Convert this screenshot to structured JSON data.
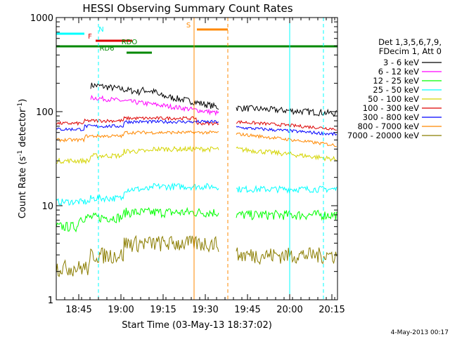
{
  "chart_data": {
    "type": "line",
    "title": "HESSI Observing Summary Count Rates",
    "xlabel": "Start Time (03-May-13 18:37:02)",
    "ylabel_main": "Count Rate (s",
    "ylabel_sup1": "-1",
    "ylabel_mid": " detector",
    "ylabel_sup2": "-1",
    "ylabel_end": ")",
    "y_scale": "log",
    "ylim": [
      1,
      1000
    ],
    "xlim_minutes": [
      0,
      100
    ],
    "x_ticks": [
      {
        "label": "18:45",
        "t": 8
      },
      {
        "label": "19:00",
        "t": 23
      },
      {
        "label": "19:15",
        "t": 38
      },
      {
        "label": "19:30",
        "t": 53
      },
      {
        "label": "19:45",
        "t": 68
      },
      {
        "label": "20:00",
        "t": 83
      },
      {
        "label": "20:15",
        "t": 98
      }
    ],
    "y_ticks": [
      {
        "label": "1000",
        "v": 1000
      },
      {
        "label": "100",
        "v": 100
      },
      {
        "label": "10",
        "v": 10
      },
      {
        "label": "1",
        "v": 1
      }
    ],
    "legend_header": [
      "Det 1,3,5,6,7,9,",
      "FDecim 1, Att 0"
    ],
    "legend_placement": "right",
    "series": [
      {
        "name": "3 - 6 keV",
        "color": "#000000"
      },
      {
        "name": "6 - 12 keV",
        "color": "#ff00ff"
      },
      {
        "name": "12 - 25 keV",
        "color": "#00ff00"
      },
      {
        "name": "25 - 50 keV",
        "color": "#00ffff"
      },
      {
        "name": "50 - 100 keV",
        "color": "#d4d400"
      },
      {
        "name": "100 - 300 keV",
        "color": "#dd0000"
      },
      {
        "name": "300 - 800 keV",
        "color": "#0000ff"
      },
      {
        "name": "800 - 7000 keV",
        "color": "#ff8800"
      },
      {
        "name": "7000 - 20000 keV",
        "color": "#8b7d00"
      }
    ],
    "flag_labels": {
      "N": "N",
      "F": "F",
      "S": "S",
      "RDO": "RDO",
      "RD6": "RD6"
    },
    "footer": "4-May-2013 00:17"
  }
}
